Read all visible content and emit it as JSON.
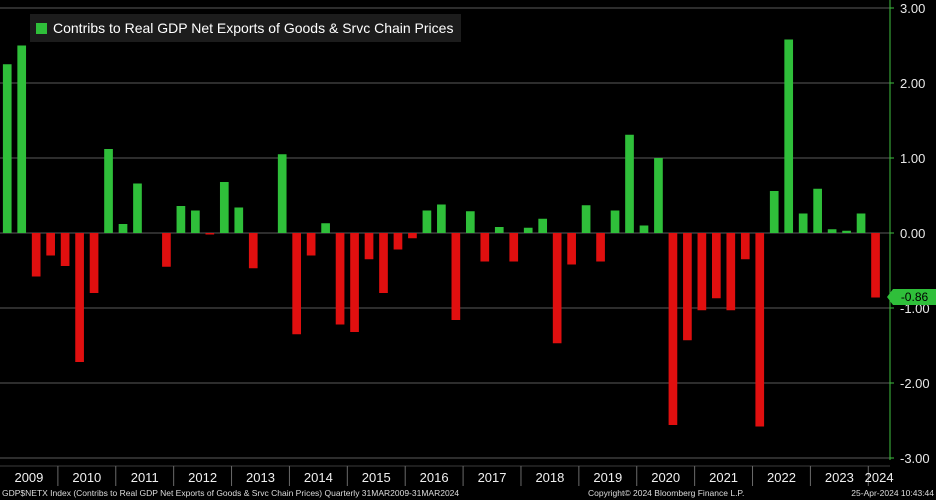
{
  "chart_data": {
    "type": "bar",
    "title": "Contribs to Real GDP Net Exports of Goods & Srvc Chain Prices",
    "ylim": [
      -3,
      3
    ],
    "yticks": [
      "3.00",
      "2.00",
      "1.00",
      "0.00",
      "-1.00",
      "-2.00",
      "-3.00"
    ],
    "year_labels": [
      "2009",
      "2010",
      "2011",
      "2012",
      "2013",
      "2014",
      "2015",
      "2016",
      "2017",
      "2018",
      "2019",
      "2020",
      "2021",
      "2022",
      "2023",
      "2024"
    ],
    "quarters": [
      "2009Q1",
      "2009Q2",
      "2009Q3",
      "2009Q4",
      "2010Q1",
      "2010Q2",
      "2010Q3",
      "2010Q4",
      "2011Q1",
      "2011Q2",
      "2011Q3",
      "2011Q4",
      "2012Q1",
      "2012Q2",
      "2012Q3",
      "2012Q4",
      "2013Q1",
      "2013Q2",
      "2013Q3",
      "2013Q4",
      "2014Q1",
      "2014Q2",
      "2014Q3",
      "2014Q4",
      "2015Q1",
      "2015Q2",
      "2015Q3",
      "2015Q4",
      "2016Q1",
      "2016Q2",
      "2016Q3",
      "2016Q4",
      "2017Q1",
      "2017Q2",
      "2017Q3",
      "2017Q4",
      "2018Q1",
      "2018Q2",
      "2018Q3",
      "2018Q4",
      "2019Q1",
      "2019Q2",
      "2019Q3",
      "2019Q4",
      "2020Q1",
      "2020Q2",
      "2020Q3",
      "2020Q4",
      "2021Q1",
      "2021Q2",
      "2021Q3",
      "2021Q4",
      "2022Q1",
      "2022Q2",
      "2022Q3",
      "2022Q4",
      "2023Q1",
      "2023Q2",
      "2023Q3",
      "2023Q4",
      "2024Q1"
    ],
    "values": [
      2.25,
      2.5,
      -0.58,
      -0.3,
      -0.44,
      -1.72,
      -0.8,
      1.12,
      0.12,
      0.66,
      0.0,
      -0.45,
      0.36,
      0.3,
      -0.02,
      0.68,
      0.34,
      -0.47,
      0.0,
      1.05,
      -1.35,
      -0.3,
      0.13,
      -1.22,
      -1.32,
      -0.35,
      -0.8,
      -0.22,
      -0.07,
      0.3,
      0.38,
      -1.16,
      0.29,
      -0.38,
      0.08,
      -0.38,
      0.07,
      0.19,
      -1.47,
      -0.42,
      0.37,
      -0.38,
      0.3,
      1.31,
      0.1,
      1.0,
      -2.56,
      -1.43,
      -1.03,
      -0.87,
      -1.03,
      -0.35,
      -2.58,
      0.56,
      2.58,
      0.26,
      0.59,
      0.05,
      0.03,
      0.26,
      -0.86
    ],
    "last_value_label": "-0.86",
    "positive_color": "#2fbf3a",
    "negative_color": "#e00f0f"
  },
  "legend": {
    "label": "Contribs to Real GDP Net Exports of Goods & Srvc Chain Prices",
    "color": "#2fbf3a"
  },
  "footer": {
    "left": "GDP$NETX Index (Contribs to Real GDP Net Exports of Goods & Srvc Chain Prices)  Quarterly 31MAR2009-31MAR2024",
    "middle": "Copyright© 2024 Bloomberg Finance L.P.",
    "right": "25-Apr-2024 10:43:44"
  }
}
